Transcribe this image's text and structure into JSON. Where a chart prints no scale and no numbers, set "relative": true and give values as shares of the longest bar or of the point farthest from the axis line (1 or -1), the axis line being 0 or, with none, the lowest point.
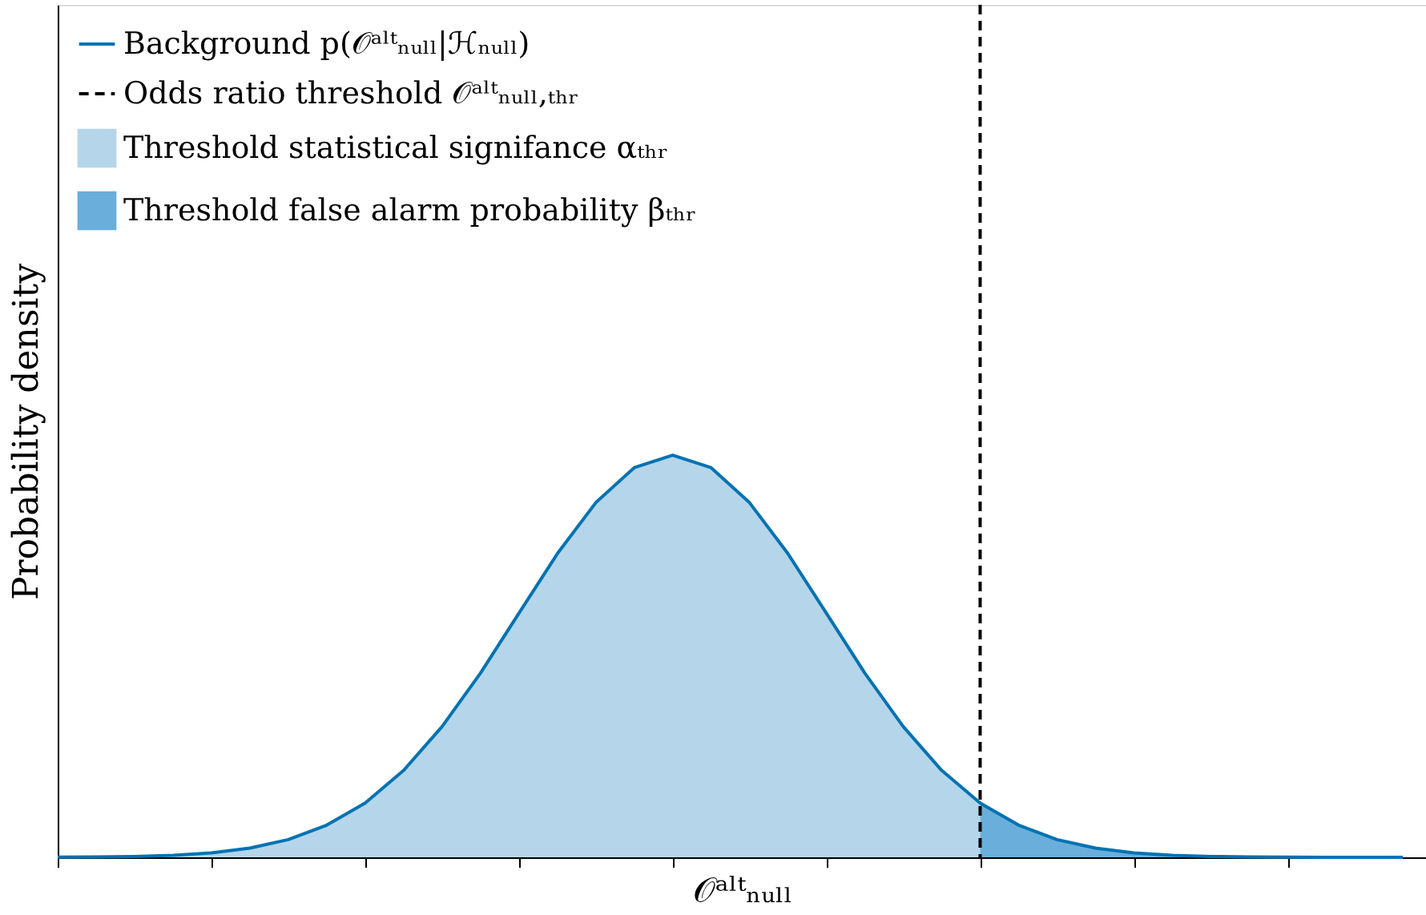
{
  "chart_data": {
    "type": "line",
    "relative": true,
    "xlabel": "𝒪ᵃˡᵗₙᵤₗₗ",
    "ylabel": "Probability density",
    "categories": [
      null,
      null,
      null,
      null,
      null,
      null,
      null,
      null,
      null,
      null,
      null,
      null,
      null,
      null,
      null,
      null,
      null,
      null,
      null,
      null,
      null,
      null,
      null,
      null,
      null,
      null,
      null,
      null,
      null,
      null,
      null,
      null,
      null,
      null,
      null,
      null
    ],
    "tick_labels": false,
    "legend": "top left",
    "grid": false,
    "series": [
      {
        "name": "Background p(𝒪ᵃˡᵗₙᵤₗₗ|ℋₙᵤₗₗ)",
        "color": "#0072b2",
        "values": [
          0.0003,
          0.0009,
          0.0022,
          0.0051,
          0.011,
          0.023,
          0.044,
          0.08,
          0.135,
          0.216,
          0.325,
          0.458,
          0.607,
          0.755,
          0.882,
          0.969,
          1,
          0.969,
          0.882,
          0.755,
          0.607,
          0.458,
          0.325,
          0.216,
          0.135,
          0.08,
          0.044,
          0.023,
          0.011,
          0.0051,
          0.0022,
          0.0009,
          0.0003,
          0.0001,
          4e-05,
          1e-05
        ]
      },
      {
        "name": "Threshold statistical signifance αₜₕᵣ",
        "type": "area",
        "color": "#b5d5ea",
        "values": [
          0.0003,
          0.0009,
          0.0022,
          0.0051,
          0.011,
          0.023,
          0.044,
          0.08,
          0.135,
          0.216,
          0.325,
          0.458,
          0.607,
          0.755,
          0.882,
          0.969,
          1,
          0.969,
          0.882,
          0.755,
          0.607,
          0.458,
          0.325,
          0.216,
          0.135,
          null,
          null,
          null,
          null,
          null,
          null,
          null,
          null,
          null,
          null,
          null
        ]
      },
      {
        "name": "Threshold false alarm probability βₜₕᵣ",
        "type": "area",
        "color": "#6aaedb",
        "values": [
          null,
          null,
          null,
          null,
          null,
          null,
          null,
          null,
          null,
          null,
          null,
          null,
          null,
          null,
          null,
          null,
          null,
          null,
          null,
          null,
          null,
          null,
          null,
          null,
          0.135,
          0.08,
          0.044,
          0.023,
          0.011,
          0.0051,
          0.0022,
          0.0009,
          0.0003,
          0.0001,
          4e-05,
          1e-05
        ]
      }
    ],
    "ref_lines": [
      {
        "axis": "x",
        "label": "Odds ratio threshold 𝒪ᵃˡᵗₙᵤₗₗ,ₜₕᵣ",
        "color": "#000000",
        "line_style": "dashed"
      }
    ]
  }
}
